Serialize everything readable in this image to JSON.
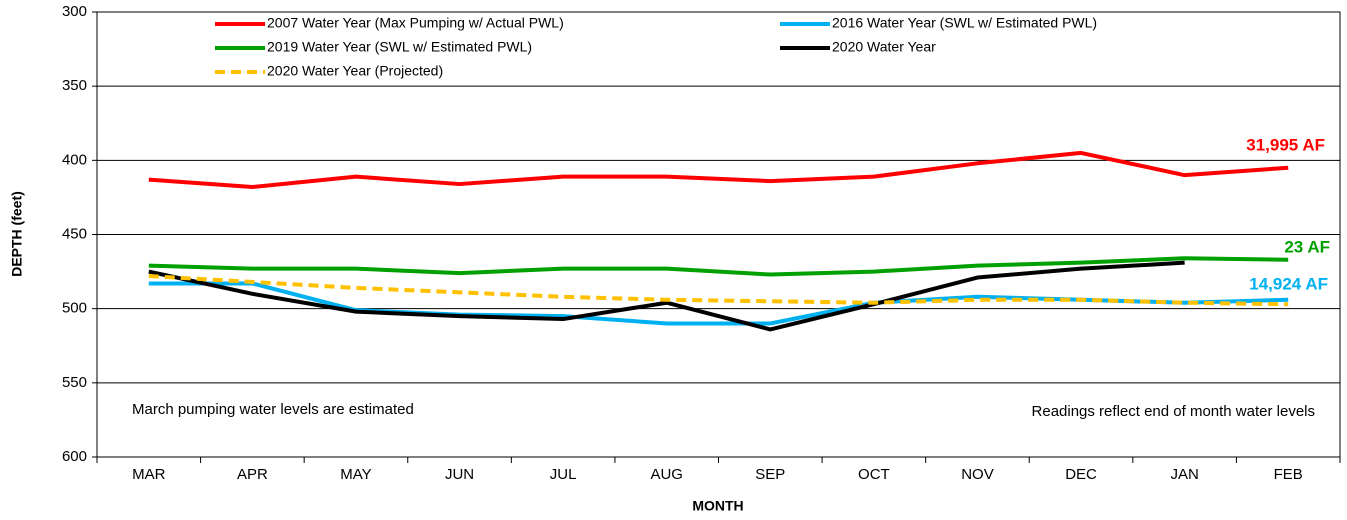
{
  "chart_data": {
    "type": "line",
    "x_label": "MONTH",
    "y_label": "DEPTH (feet)",
    "categories": [
      "MAR",
      "APR",
      "MAY",
      "JUN",
      "JUL",
      "AUG",
      "SEP",
      "OCT",
      "NOV",
      "DEC",
      "JAN",
      "FEB"
    ],
    "ylim": [
      300,
      600
    ],
    "y_reversed": true,
    "yticks": [
      300,
      350,
      400,
      450,
      500,
      550,
      600
    ],
    "grid": true,
    "series": [
      {
        "name": "2007 Water Year (Max Pumping w/ Actual PWL)",
        "color": "#ff0000",
        "dashed": false,
        "values": [
          413,
          418,
          411,
          416,
          411,
          411,
          414,
          411,
          402,
          395,
          410,
          405
        ]
      },
      {
        "name": "2016 Water Year (SWL w/ Estimated PWL)",
        "color": "#00b0f0",
        "dashed": false,
        "values": [
          483,
          483,
          501,
          504,
          505,
          510,
          510,
          496,
          492,
          494,
          496,
          494
        ]
      },
      {
        "name": "2019 Water Year (SWL w/ Estimated PWL)",
        "color": "#00a000",
        "dashed": false,
        "values": [
          471,
          473,
          473,
          476,
          473,
          473,
          477,
          475,
          471,
          469,
          466,
          467
        ]
      },
      {
        "name": "2020 Water Year",
        "color": "#000000",
        "dashed": false,
        "values": [
          475,
          490,
          502,
          505,
          507,
          496,
          514,
          497,
          479,
          473,
          469,
          null
        ]
      },
      {
        "name": "2020 Water Year (Projected)",
        "color": "#ffc000",
        "dashed": true,
        "values": [
          478,
          482,
          486,
          489,
          492,
          494,
          495,
          496,
          494,
          494,
          496,
          497
        ]
      }
    ],
    "annotations": [
      {
        "text": "31,995 AF",
        "color": "#ff0000",
        "bold": true
      },
      {
        "text": "23 AF",
        "color": "#00a000",
        "bold": true
      },
      {
        "text": "14,924 AF",
        "color": "#00b0f0",
        "bold": true
      },
      {
        "text": "March pumping water levels are estimated",
        "color": "#000000",
        "bold": false
      },
      {
        "text": "Readings reflect end of month water levels",
        "color": "#000000",
        "bold": false
      }
    ]
  }
}
